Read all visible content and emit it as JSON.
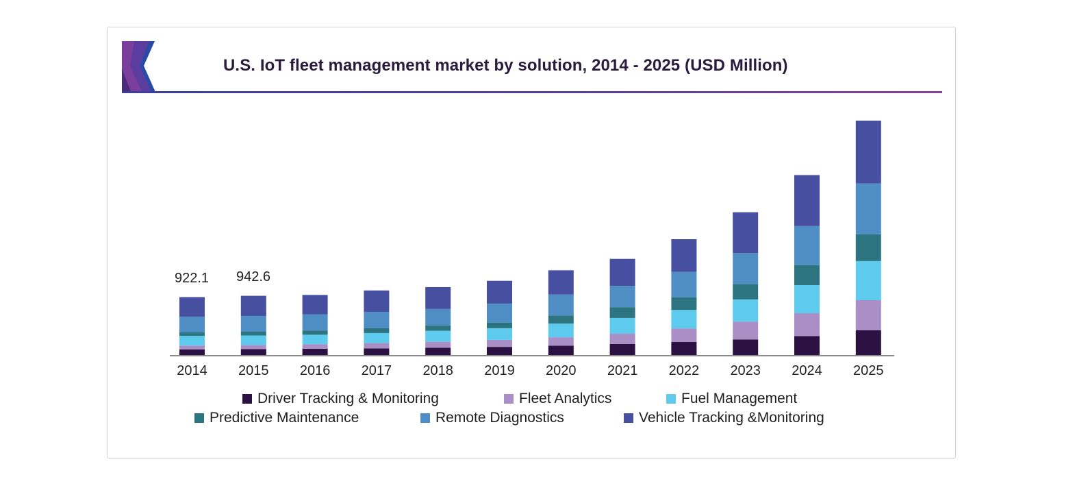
{
  "chart_data": {
    "type": "bar",
    "stacked": true,
    "title": "U.S. IoT fleet management market by solution, 2014 - 2025 (USD Million)",
    "xlabel": "",
    "ylabel": "",
    "categories": [
      "2014",
      "2015",
      "2016",
      "2017",
      "2018",
      "2019",
      "2020",
      "2021",
      "2022",
      "2023",
      "2024",
      "2025"
    ],
    "series": [
      {
        "name": "Driver Tracking & Monitoring",
        "color": "#2b1141",
        "values": [
          90,
          93,
          98,
          106,
          115,
          129,
          148,
          175,
          208,
          248,
          300,
          393
        ]
      },
      {
        "name": "Fleet Analytics",
        "color": "#a98fc5",
        "values": [
          60,
          66,
          74,
          84,
          96,
          112,
          134,
          163,
          216,
          285,
          365,
          480
        ]
      },
      {
        "name": "Fuel Management",
        "color": "#5ecbee",
        "values": [
          155,
          152,
          151,
          160,
          176,
          186,
          218,
          252,
          294,
          352,
          448,
          623
        ]
      },
      {
        "name": "Predictive Maintenance",
        "color": "#2c7580",
        "values": [
          55,
          60,
          68,
          76,
          84,
          90,
          130,
          172,
          202,
          243,
          320,
          426
        ]
      },
      {
        "name": "Remote Diagnostics",
        "color": "#4e8ec4",
        "values": [
          250,
          250,
          255,
          262,
          262,
          302,
          333,
          339,
          404,
          495,
          620,
          810
        ]
      },
      {
        "name": "Vehicle Tracking &Monitoring",
        "color": "#4750a0",
        "values": [
          312,
          322,
          310,
          340,
          348,
          363,
          386,
          430,
          520,
          650,
          812,
          1000
        ]
      }
    ],
    "totals": [
      922,
      943,
      956,
      1028,
      1081,
      1182,
      1349,
      1531,
      1844,
      2273,
      2865,
      3732
    ],
    "data_labels": [
      {
        "category": "2014",
        "text": "922.1"
      },
      {
        "category": "2015",
        "text": "942.6"
      }
    ],
    "ylim": [
      0,
      3900
    ],
    "grid": false,
    "legend": "bottom"
  }
}
